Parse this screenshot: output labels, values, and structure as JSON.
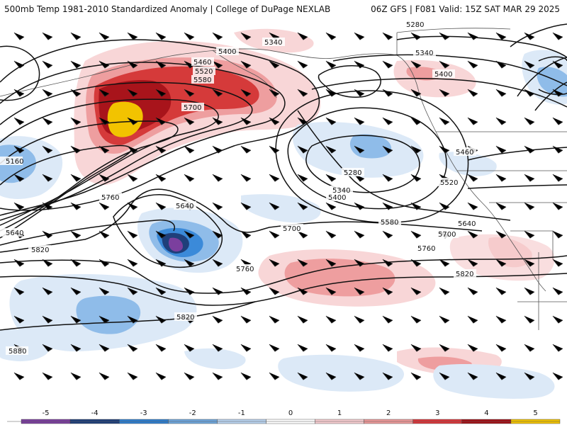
{
  "header": {
    "title_left": "500mb Temp 1981-2010 Standardized Anomaly | College of DuPage NEXLAB",
    "title_right": "06Z GFS | F081 Valid: 15Z SAT MAR 29 2025"
  },
  "contour_labels": [
    {
      "text": "5400"
    },
    {
      "text": "5340"
    },
    {
      "text": "5460"
    },
    {
      "text": "5520"
    },
    {
      "text": "5580"
    },
    {
      "text": "5700"
    },
    {
      "text": "5160"
    },
    {
      "text": "5640"
    },
    {
      "text": "5760"
    },
    {
      "text": "5820"
    },
    {
      "text": "5880"
    },
    {
      "text": "5640"
    },
    {
      "text": "5760"
    },
    {
      "text": "5820"
    },
    {
      "text": "5280"
    },
    {
      "text": "5340"
    },
    {
      "text": "5400"
    },
    {
      "text": "5280"
    },
    {
      "text": "5340"
    },
    {
      "text": "5400"
    },
    {
      "text": "5580"
    },
    {
      "text": "5700"
    },
    {
      "text": "5760"
    },
    {
      "text": "5820"
    },
    {
      "text": "5460"
    },
    {
      "text": "5520"
    },
    {
      "text": "5640"
    },
    {
      "text": "5700"
    }
  ],
  "colorbar": {
    "ticks": [
      "-5",
      "-4",
      "-3",
      "-2",
      "-1",
      "0",
      "1",
      "2",
      "3",
      "4",
      "5"
    ],
    "colors": [
      "#7b3f9e",
      "#1f3f7a",
      "#2f7fcf",
      "#6fa7dd",
      "#b9d3ef",
      "#ffffff",
      "#f6cdd0",
      "#ec9a9a",
      "#d9363b",
      "#a11217",
      "#f2c300"
    ]
  },
  "colors": {
    "warm_1": "#f8d6d7",
    "warm_2": "#ee9e9f",
    "warm_3": "#d53a3a",
    "warm_4": "#a8141b",
    "warm_5": "#f2c300",
    "cool_1": "#dce9f7",
    "cool_2": "#8fbce9",
    "cool_3": "#3b8ad9",
    "cool_4": "#1f3f7a",
    "cool_5": "#7b3f9e"
  }
}
